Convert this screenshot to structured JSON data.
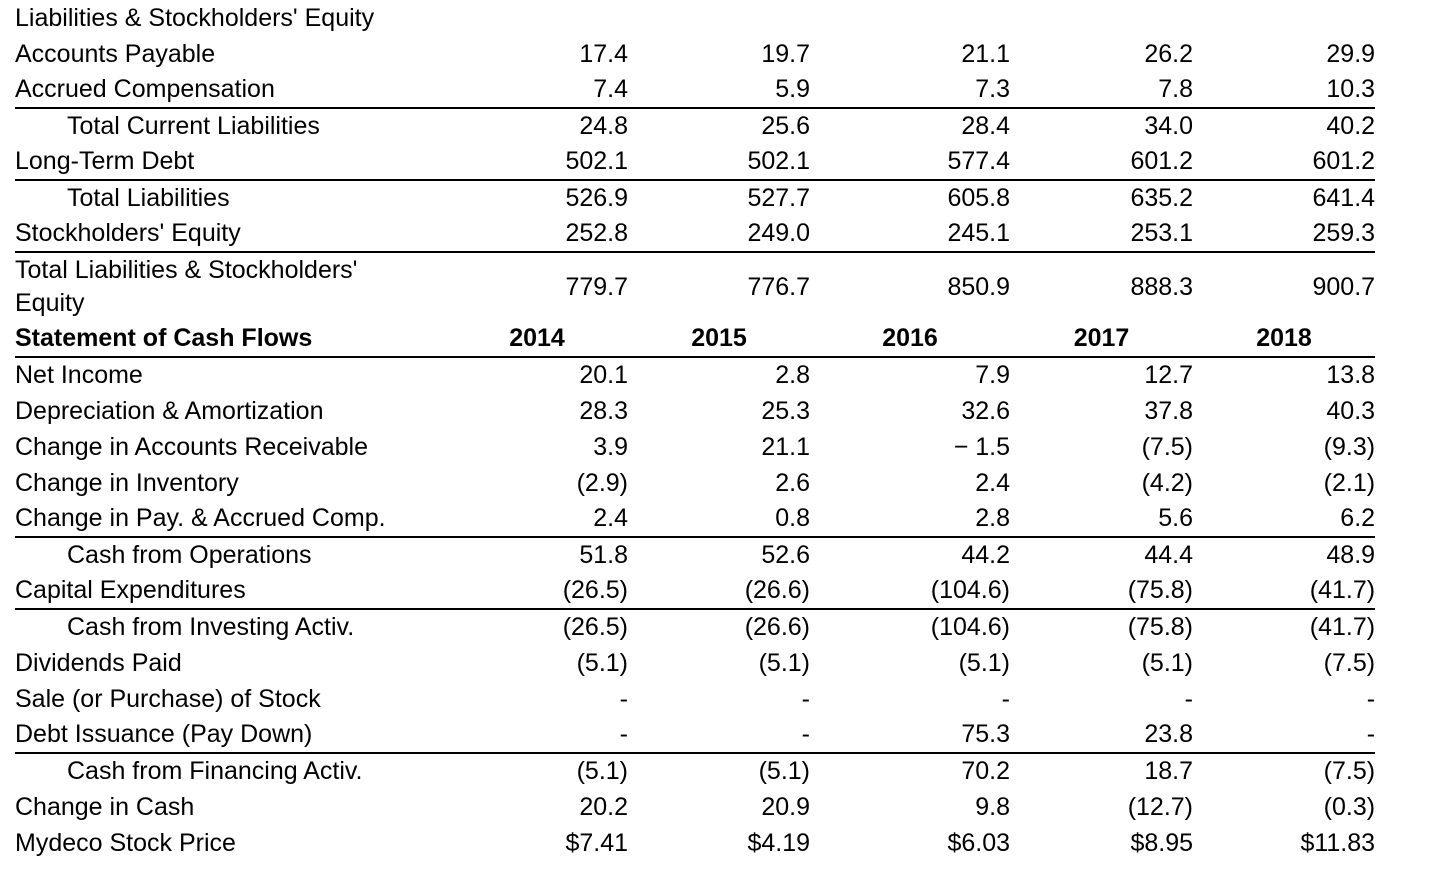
{
  "document": {
    "background": "#ffffff",
    "text_color": "#000000",
    "rule_color": "#000000"
  },
  "sections": [
    {
      "title": "Liabilities & Stockholders' Equity",
      "rows": [
        {
          "label": "Accounts Payable",
          "indent": false,
          "rule_below": false,
          "values": [
            "17.4",
            "19.7",
            "21.1",
            "26.2",
            "29.9"
          ]
        },
        {
          "label": "Accrued Compensation",
          "indent": false,
          "rule_below": true,
          "values": [
            "7.4",
            "5.9",
            "7.3",
            "7.8",
            "10.3"
          ]
        },
        {
          "label": "Total Current Liabilities",
          "indent": true,
          "rule_below": false,
          "values": [
            "24.8",
            "25.6",
            "28.4",
            "34.0",
            "40.2"
          ]
        },
        {
          "label": "Long-Term Debt",
          "indent": false,
          "rule_below": true,
          "values": [
            "502.1",
            "502.1",
            "577.4",
            "601.2",
            "601.2"
          ]
        },
        {
          "label": "Total Liabilities",
          "indent": true,
          "rule_below": false,
          "values": [
            "526.9",
            "527.7",
            "605.8",
            "635.2",
            "641.4"
          ]
        },
        {
          "label": "Stockholders' Equity",
          "indent": false,
          "rule_below": true,
          "values": [
            "252.8",
            "249.0",
            "245.1",
            "253.1",
            "259.3"
          ]
        },
        {
          "label": "Total Liabilities & Stockholders'\nEquity",
          "indent": false,
          "rule_below": false,
          "tall": true,
          "values": [
            "779.7",
            "776.7",
            "850.9",
            "888.3",
            "900.7"
          ]
        }
      ]
    },
    {
      "header_label": "Statement of Cash Flows",
      "years": [
        "2014",
        "2015",
        "2016",
        "2017",
        "2018"
      ],
      "rows": [
        {
          "label": "Net Income",
          "indent": false,
          "rule_below": false,
          "values": [
            "20.1",
            "2.8",
            "7.9",
            "12.7",
            "13.8"
          ]
        },
        {
          "label": "Depreciation & Amortization",
          "indent": false,
          "rule_below": false,
          "values": [
            "28.3",
            "25.3",
            "32.6",
            "37.8",
            "40.3"
          ]
        },
        {
          "label": "Change in Accounts Receivable",
          "indent": false,
          "rule_below": false,
          "values": [
            "3.9",
            "21.1",
            "− 1.5",
            "(7.5)",
            "(9.3)"
          ]
        },
        {
          "label": "Change in Inventory",
          "indent": false,
          "rule_below": false,
          "values": [
            "(2.9)",
            "2.6",
            "2.4",
            "(4.2)",
            "(2.1)"
          ]
        },
        {
          "label": "Change in Pay. & Accrued Comp.",
          "indent": false,
          "rule_below": true,
          "values": [
            "2.4",
            "0.8",
            "2.8",
            "5.6",
            "6.2"
          ]
        },
        {
          "label": "Cash from Operations",
          "indent": true,
          "rule_below": false,
          "values": [
            "51.8",
            "52.6",
            "44.2",
            "44.4",
            "48.9"
          ]
        },
        {
          "label": "Capital Expenditures",
          "indent": false,
          "rule_below": true,
          "values": [
            "(26.5)",
            "(26.6)",
            "(104.6)",
            "(75.8)",
            "(41.7)"
          ]
        },
        {
          "label": "Cash from Investing Activ.",
          "indent": true,
          "rule_below": false,
          "values": [
            "(26.5)",
            "(26.6)",
            "(104.6)",
            "(75.8)",
            "(41.7)"
          ]
        },
        {
          "label": "Dividends Paid",
          "indent": false,
          "rule_below": false,
          "values": [
            "(5.1)",
            "(5.1)",
            "(5.1)",
            "(5.1)",
            "(7.5)"
          ]
        },
        {
          "label": "Sale (or Purchase) of Stock",
          "indent": false,
          "rule_below": false,
          "values": [
            "-",
            "-",
            "-",
            "-",
            "-"
          ]
        },
        {
          "label": "Debt Issuance (Pay Down)",
          "indent": false,
          "rule_below": true,
          "values": [
            "-",
            "-",
            "75.3",
            "23.8",
            "-"
          ]
        },
        {
          "label": "Cash from Financing Activ.",
          "indent": true,
          "rule_below": false,
          "values": [
            "(5.1)",
            "(5.1)",
            "70.2",
            "18.7",
            "(7.5)"
          ]
        },
        {
          "label": "Change in Cash",
          "indent": false,
          "rule_below": false,
          "values": [
            "20.2",
            "20.9",
            "9.8",
            "(12.7)",
            "(0.3)"
          ]
        },
        {
          "label": "Mydeco Stock Price",
          "indent": false,
          "rule_below": false,
          "values": [
            "$7.41",
            "$4.19",
            "$6.03",
            "$8.95",
            "$11.83"
          ]
        }
      ]
    }
  ]
}
